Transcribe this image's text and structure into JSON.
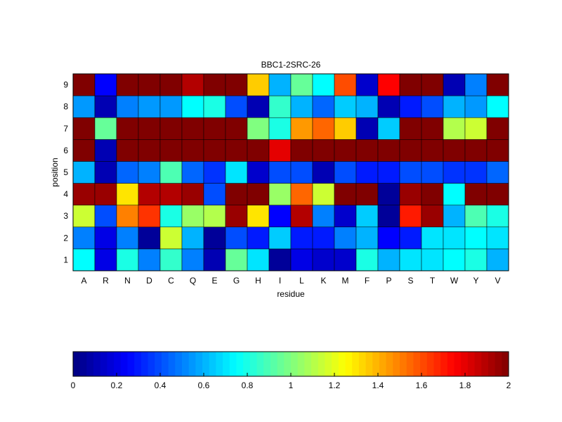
{
  "chart_data": {
    "type": "heatmap",
    "title": "BBC1-2SRC-26",
    "xlabel": "residue",
    "ylabel": "position",
    "x_categories": [
      "A",
      "R",
      "N",
      "D",
      "C",
      "Q",
      "E",
      "G",
      "H",
      "I",
      "L",
      "K",
      "M",
      "F",
      "P",
      "S",
      "T",
      "W",
      "Y",
      "V"
    ],
    "y_categories": [
      "1",
      "2",
      "3",
      "4",
      "5",
      "6",
      "7",
      "8",
      "9"
    ],
    "values": [
      [
        0.75,
        0.2,
        0.8,
        0.5,
        0.85,
        0.5,
        0.1,
        0.95,
        0.7,
        0.05,
        0.2,
        0.15,
        0.15,
        0.8,
        0.6,
        0.7,
        0.7,
        0.75,
        0.8,
        0.6
      ],
      [
        0.5,
        0.2,
        0.5,
        0.05,
        1.15,
        0.6,
        0.05,
        0.4,
        0.3,
        0.65,
        0.3,
        0.3,
        0.5,
        0.6,
        0.25,
        0.3,
        0.7,
        0.7,
        0.75,
        0.7
      ],
      [
        1.15,
        0.4,
        1.5,
        1.65,
        0.8,
        1.05,
        1.1,
        1.95,
        1.3,
        0.25,
        1.9,
        0.5,
        0.15,
        0.65,
        0.05,
        1.7,
        1.95,
        0.6,
        0.9,
        0.8
      ],
      [
        1.95,
        1.95,
        1.3,
        1.9,
        1.9,
        1.95,
        0.4,
        2.0,
        2.0,
        1.05,
        1.55,
        1.15,
        2.0,
        2.0,
        0.05,
        1.95,
        2.0,
        0.75,
        2.0,
        2.0
      ],
      [
        0.6,
        0.1,
        0.45,
        0.5,
        0.9,
        0.45,
        0.35,
        0.7,
        0.15,
        0.4,
        0.4,
        0.1,
        0.4,
        0.3,
        0.3,
        0.4,
        0.4,
        0.35,
        0.35,
        0.45
      ],
      [
        2.0,
        0.1,
        2.0,
        2.0,
        2.0,
        2.0,
        2.0,
        2.0,
        2.0,
        1.8,
        2.0,
        2.0,
        2.0,
        2.0,
        2.0,
        2.0,
        2.0,
        2.0,
        2.0,
        2.0
      ],
      [
        2.0,
        0.95,
        2.0,
        2.0,
        2.0,
        2.0,
        2.0,
        2.0,
        1.0,
        0.8,
        1.45,
        1.55,
        1.35,
        0.1,
        0.65,
        2.0,
        2.0,
        1.1,
        1.15,
        2.0
      ],
      [
        0.55,
        0.1,
        0.5,
        0.55,
        0.55,
        0.75,
        0.8,
        0.4,
        0.1,
        0.85,
        0.6,
        0.45,
        0.65,
        0.6,
        0.1,
        0.3,
        0.4,
        0.6,
        0.55,
        0.75
      ],
      [
        2.0,
        0.25,
        2.0,
        2.0,
        2.0,
        1.9,
        2.0,
        2.0,
        1.35,
        0.6,
        0.95,
        0.75,
        1.6,
        0.15,
        1.75,
        2.0,
        2.0,
        0.1,
        0.5,
        2.0
      ]
    ],
    "zlim": [
      0,
      2
    ],
    "colormap": "jet",
    "colorbar": {
      "orientation": "horizontal",
      "ticks": [
        0,
        0.2,
        0.4,
        0.6,
        0.8,
        1,
        1.2,
        1.4,
        1.6,
        1.8,
        2
      ],
      "tick_labels": [
        "0",
        "0.2",
        "0.4",
        "0.6",
        "0.8",
        "1",
        "1.2",
        "1.4",
        "1.6",
        "1.8",
        "2"
      ]
    },
    "grid": true
  }
}
